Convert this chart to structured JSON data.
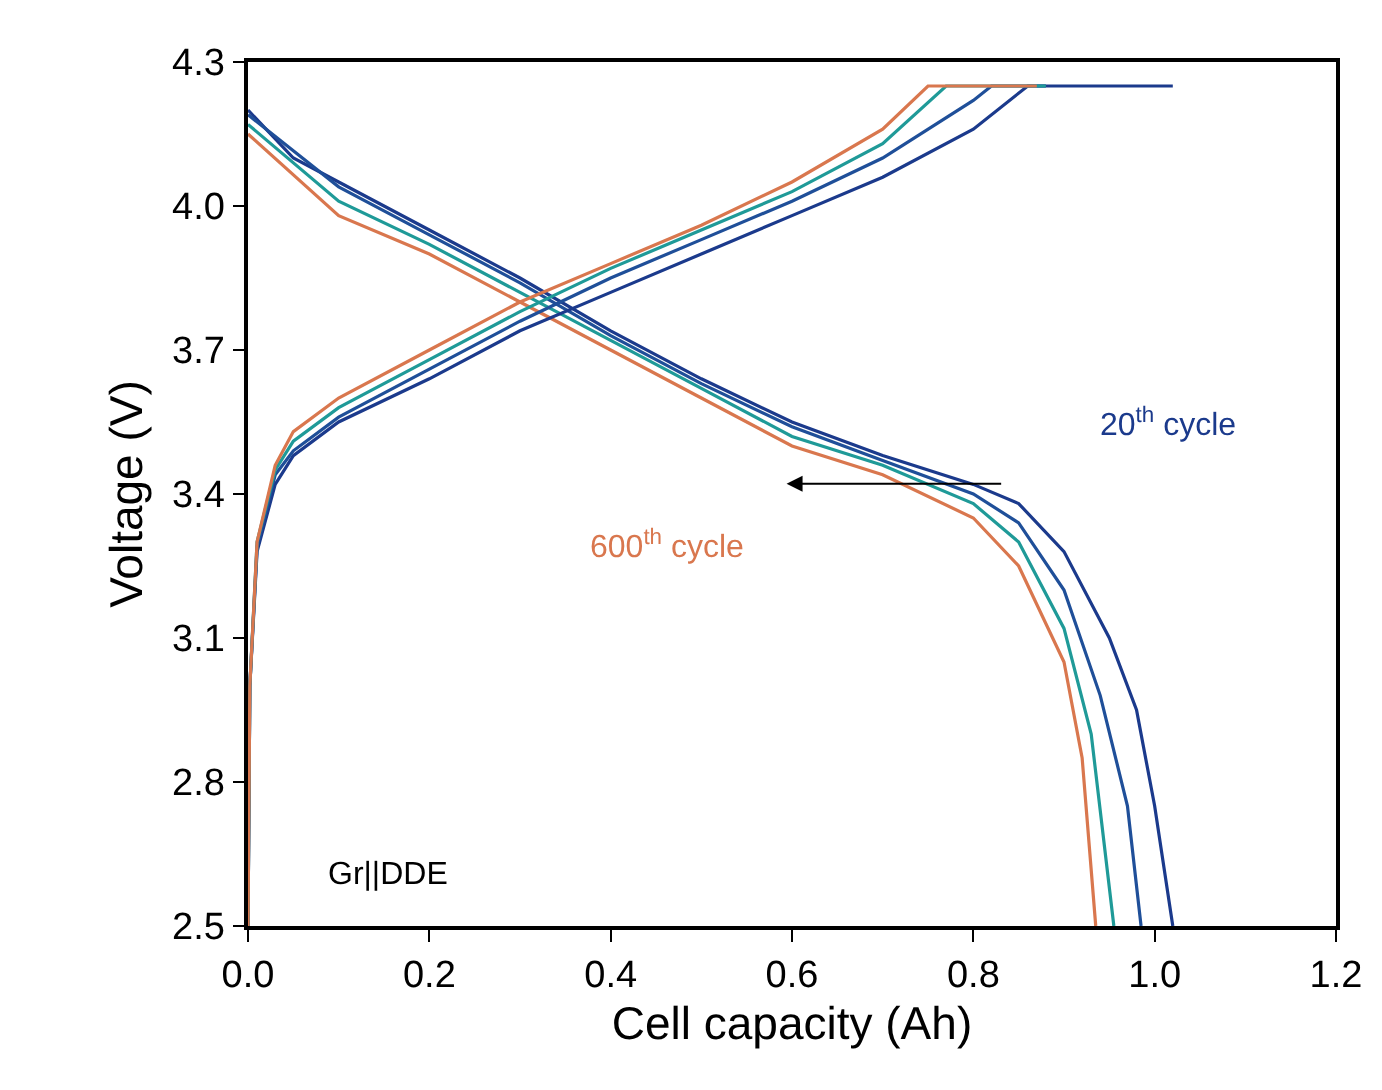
{
  "chart_data": {
    "type": "line",
    "xlabel": "Cell capacity (Ah)",
    "ylabel": "Voltage (V)",
    "xlim": [
      0,
      1.2
    ],
    "ylim": [
      2.5,
      4.3
    ],
    "xticks": [
      {
        "value": 0,
        "label": "0.0"
      },
      0.2,
      0.4,
      0.6,
      0.8,
      {
        "value": 1,
        "label": "1.0"
      },
      1.2
    ],
    "yticks": [
      2.5,
      2.8,
      3.1,
      3.4,
      3.7,
      {
        "value": 4,
        "label": "4.0"
      },
      4.3
    ],
    "grid": false,
    "marker": "none",
    "line_style": "solid",
    "annotations": [
      "20$^{th}$ cycle",
      "600$^{th}$ cycle",
      "Gr||DDE"
    ],
    "series": [
      {
        "color": "#1b3a8c",
        "x": [
          0,
          0.05,
          0.1,
          0.2,
          0.3,
          0.4,
          0.5,
          0.6,
          0.7,
          0.8,
          0.85,
          0.9,
          0.95,
          0.98,
          1.0,
          1.02
        ],
        "values": [
          4.2,
          4.1,
          4.05,
          3.95,
          3.85,
          3.74,
          3.64,
          3.55,
          3.48,
          3.42,
          3.38,
          3.28,
          3.1,
          2.95,
          2.75,
          2.5
        ]
      },
      {
        "color": "#1f4f99",
        "x": [
          0,
          0.1,
          0.2,
          0.3,
          0.4,
          0.5,
          0.6,
          0.7,
          0.8,
          0.85,
          0.9,
          0.94,
          0.97,
          0.985
        ],
        "values": [
          4.19,
          4.04,
          3.94,
          3.84,
          3.73,
          3.63,
          3.54,
          3.47,
          3.4,
          3.34,
          3.2,
          2.98,
          2.75,
          2.5
        ]
      },
      {
        "color": "#1f9a98",
        "x": [
          0,
          0.1,
          0.2,
          0.3,
          0.4,
          0.5,
          0.6,
          0.7,
          0.8,
          0.85,
          0.9,
          0.93,
          0.955
        ],
        "values": [
          4.17,
          4.01,
          3.92,
          3.82,
          3.72,
          3.62,
          3.52,
          3.46,
          3.38,
          3.3,
          3.12,
          2.9,
          2.5
        ]
      },
      {
        "color": "#d9774e",
        "x": [
          0,
          0.1,
          0.2,
          0.3,
          0.4,
          0.5,
          0.6,
          0.7,
          0.8,
          0.85,
          0.9,
          0.92,
          0.935
        ],
        "values": [
          4.15,
          3.98,
          3.9,
          3.8,
          3.7,
          3.6,
          3.5,
          3.44,
          3.35,
          3.25,
          3.05,
          2.85,
          2.5
        ]
      },
      {
        "color": "#1b3a8c",
        "x": [
          0,
          0.002,
          0.01,
          0.03,
          0.05,
          0.1,
          0.2,
          0.3,
          0.4,
          0.5,
          0.6,
          0.7,
          0.8,
          0.86,
          1.02
        ],
        "values": [
          2.5,
          3.0,
          3.28,
          3.42,
          3.48,
          3.55,
          3.64,
          3.74,
          3.82,
          3.9,
          3.98,
          4.06,
          4.16,
          4.25,
          4.25
        ]
      },
      {
        "color": "#1f4f99",
        "x": [
          0,
          0.002,
          0.01,
          0.03,
          0.05,
          0.1,
          0.2,
          0.3,
          0.4,
          0.5,
          0.6,
          0.7,
          0.8,
          0.82,
          0.88
        ],
        "values": [
          2.5,
          3.0,
          3.29,
          3.44,
          3.49,
          3.56,
          3.66,
          3.76,
          3.85,
          3.93,
          4.01,
          4.1,
          4.22,
          4.25,
          4.25
        ]
      },
      {
        "color": "#1f9a98",
        "x": [
          0,
          0.002,
          0.01,
          0.03,
          0.05,
          0.1,
          0.2,
          0.3,
          0.4,
          0.5,
          0.6,
          0.7,
          0.77,
          0.88
        ],
        "values": [
          2.5,
          3.0,
          3.3,
          3.45,
          3.51,
          3.58,
          3.68,
          3.78,
          3.87,
          3.95,
          4.03,
          4.13,
          4.25,
          4.25
        ]
      },
      {
        "color": "#d9774e",
        "x": [
          0,
          0.002,
          0.01,
          0.03,
          0.05,
          0.1,
          0.2,
          0.3,
          0.4,
          0.5,
          0.6,
          0.7,
          0.75,
          0.87
        ],
        "values": [
          2.5,
          3.0,
          3.3,
          3.46,
          3.53,
          3.6,
          3.7,
          3.8,
          3.88,
          3.96,
          4.05,
          4.16,
          4.25,
          4.25
        ]
      }
    ]
  }
}
